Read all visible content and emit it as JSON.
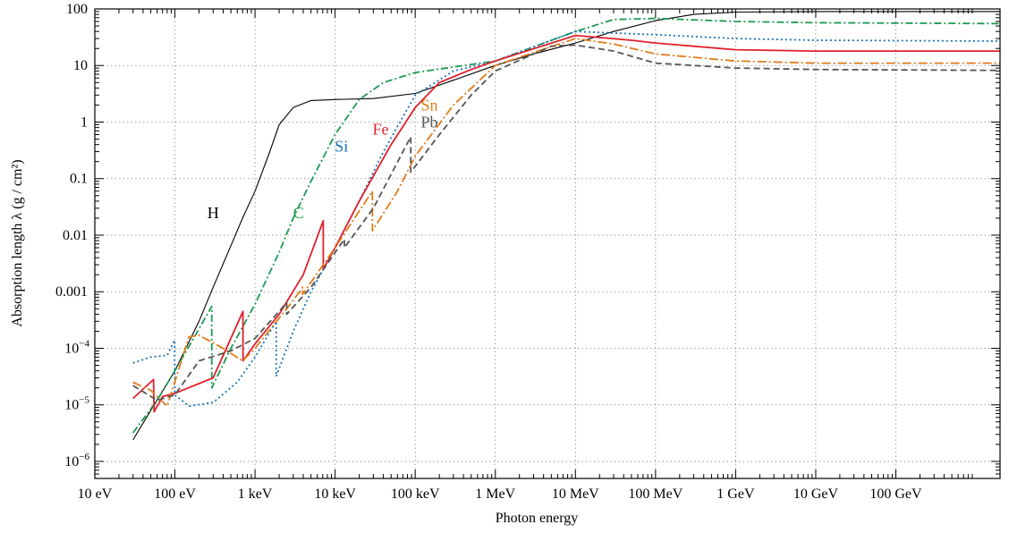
{
  "chart_data": {
    "type": "line",
    "title": "",
    "xlabel": "Photon energy",
    "ylabel": "Absorption length   λ  (g / cm²)",
    "x_scale": "log",
    "y_scale": "log",
    "xlim_eV": [
      10,
      2000000000000
    ],
    "ylim_g_per_cm2": [
      5e-07,
      100
    ],
    "grid": true,
    "legend": "none",
    "x_ticks": [
      {
        "value": 10,
        "label": "10 eV"
      },
      {
        "value": 100,
        "label": "100 eV"
      },
      {
        "value": 1000,
        "label": "1 keV"
      },
      {
        "value": 10000,
        "label": "10 keV"
      },
      {
        "value": 100000,
        "label": "100 keV"
      },
      {
        "value": 1000000,
        "label": "1 MeV"
      },
      {
        "value": 10000000,
        "label": "10 MeV"
      },
      {
        "value": 100000000,
        "label": "100 MeV"
      },
      {
        "value": 1000000000,
        "label": "1 GeV"
      },
      {
        "value": 10000000000,
        "label": "10 GeV"
      },
      {
        "value": 100000000000,
        "label": "100 GeV"
      }
    ],
    "y_ticks": [
      {
        "value": 1e-06,
        "label": "10",
        "sup": "−6"
      },
      {
        "value": 1e-05,
        "label": "10",
        "sup": "−5"
      },
      {
        "value": 0.0001,
        "label": "10",
        "sup": "−4"
      },
      {
        "value": 0.001,
        "label": "0.001",
        "sup": ""
      },
      {
        "value": 0.01,
        "label": "0.01",
        "sup": ""
      },
      {
        "value": 0.1,
        "label": "0.1",
        "sup": ""
      },
      {
        "value": 1,
        "label": "1",
        "sup": ""
      },
      {
        "value": 10,
        "label": "10",
        "sup": ""
      },
      {
        "value": 100,
        "label": "100",
        "sup": ""
      }
    ],
    "series": [
      {
        "name": "H",
        "color": "#000000",
        "dash": "",
        "label_at": [
          300,
          0.02
        ],
        "points": [
          [
            30,
            2.4e-06
          ],
          [
            50,
            8e-06
          ],
          [
            100,
            4e-05
          ],
          [
            200,
            0.0003
          ],
          [
            300,
            0.0012
          ],
          [
            500,
            0.0065
          ],
          [
            700,
            0.02
          ],
          [
            1000,
            0.06
          ],
          [
            1500,
            0.28
          ],
          [
            2000,
            0.9
          ],
          [
            3000,
            1.8
          ],
          [
            5000,
            2.4
          ],
          [
            10000,
            2.5
          ],
          [
            30000,
            2.6
          ],
          [
            100000,
            3.2
          ],
          [
            300000,
            5.5
          ],
          [
            1000000,
            10
          ],
          [
            3000000,
            16
          ],
          [
            10000000,
            25
          ],
          [
            30000000,
            40
          ],
          [
            100000000,
            62
          ],
          [
            300000000,
            80
          ],
          [
            1000000000,
            88
          ],
          [
            10000000000,
            90
          ],
          [
            2000000000000,
            90
          ]
        ]
      },
      {
        "name": "C",
        "color": "#1a9a50",
        "dash": "8 3 2 3",
        "label_at": [
          3500,
          0.02
        ],
        "points": [
          [
            30,
            3.2e-06
          ],
          [
            60,
            1.2e-05
          ],
          [
            100,
            4e-05
          ],
          [
            200,
            0.00022
          ],
          [
            288,
            0.00055
          ],
          [
            289,
            2e-05
          ],
          [
            500,
            0.0001
          ],
          [
            1000,
            0.0006
          ],
          [
            2000,
            0.005
          ],
          [
            3000,
            0.02
          ],
          [
            5000,
            0.09
          ],
          [
            10000,
            0.6
          ],
          [
            20000,
            2.5
          ],
          [
            40000,
            5
          ],
          [
            100000,
            7.5
          ],
          [
            1000000,
            12
          ],
          [
            10000000,
            40
          ],
          [
            30000000,
            65
          ],
          [
            100000000,
            68
          ],
          [
            1000000000,
            60
          ],
          [
            10000000000,
            57
          ],
          [
            2000000000000,
            55
          ]
        ]
      },
      {
        "name": "Si",
        "color": "#1874b8",
        "dash": "2 3",
        "label_at": [
          12000,
          0.3
        ],
        "points": [
          [
            30,
            5.5e-05
          ],
          [
            50,
            7e-05
          ],
          [
            80,
            7.5e-05
          ],
          [
            99,
            0.00014
          ],
          [
            100,
            1.5e-05
          ],
          [
            150,
            9.5e-06
          ],
          [
            300,
            1.1e-05
          ],
          [
            600,
            2.5e-05
          ],
          [
            1000,
            7e-05
          ],
          [
            1839,
            0.0003
          ],
          [
            1840,
            3.2e-05
          ],
          [
            3000,
            0.0002
          ],
          [
            5000,
            0.001
          ],
          [
            10000,
            0.006
          ],
          [
            20000,
            0.04
          ],
          [
            40000,
            0.3
          ],
          [
            100000,
            3
          ],
          [
            300000,
            8
          ],
          [
            1000000,
            12
          ],
          [
            10000000,
            40
          ],
          [
            100000000,
            35
          ],
          [
            1000000000,
            30
          ],
          [
            10000000000,
            28
          ],
          [
            2000000000000,
            27
          ]
        ]
      },
      {
        "name": "Fe",
        "color": "#e0202a",
        "dash": "",
        "label_at": [
          37000,
          0.6
        ],
        "points": [
          [
            30,
            1.3e-05
          ],
          [
            54,
            2.8e-05
          ],
          [
            55,
            7.5e-06
          ],
          [
            70,
            1.4e-05
          ],
          [
            100,
            1.6e-05
          ],
          [
            300,
            3e-05
          ],
          [
            707,
            0.00045
          ],
          [
            708,
            6e-05
          ],
          [
            1000,
            0.00012
          ],
          [
            2000,
            0.0004
          ],
          [
            4000,
            0.002
          ],
          [
            7111,
            0.018
          ],
          [
            7112,
            0.0025
          ],
          [
            10000,
            0.006
          ],
          [
            20000,
            0.04
          ],
          [
            50000,
            0.4
          ],
          [
            100000,
            1.8
          ],
          [
            200000,
            5
          ],
          [
            500000,
            8.5
          ],
          [
            1000000,
            12
          ],
          [
            10000000,
            34
          ],
          [
            50000000,
            28
          ],
          [
            100000000,
            25
          ],
          [
            1000000000,
            19
          ],
          [
            10000000000,
            18
          ],
          [
            2000000000000,
            18
          ]
        ]
      },
      {
        "name": "Sn",
        "color": "#e07b1a",
        "dash": "10 3 2 3",
        "label_at": [
          150000,
          1.6
        ],
        "points": [
          [
            30,
            2.5e-05
          ],
          [
            50,
            1.8e-05
          ],
          [
            80,
            9.5e-06
          ],
          [
            150,
            0.00016
          ],
          [
            200,
            0.00017
          ],
          [
            400,
            0.0001
          ],
          [
            700,
            6e-05
          ],
          [
            1000,
            0.0001
          ],
          [
            3000,
            0.0007
          ],
          [
            3928,
            0.0012
          ],
          [
            3929,
            0.0009
          ],
          [
            10000,
            0.006
          ],
          [
            29200,
            0.06
          ],
          [
            29201,
            0.012
          ],
          [
            60000,
            0.06
          ],
          [
            100000,
            0.25
          ],
          [
            300000,
            2
          ],
          [
            1000000,
            10
          ],
          [
            10000000,
            30
          ],
          [
            30000000,
            24
          ],
          [
            100000000,
            16
          ],
          [
            1000000000,
            12
          ],
          [
            10000000000,
            11
          ],
          [
            2000000000000,
            11
          ]
        ]
      },
      {
        "name": "Pb",
        "color": "#555555",
        "dash": "7 4",
        "label_at": [
          150000,
          0.8
        ],
        "points": [
          [
            30,
            2.2e-05
          ],
          [
            60,
            1.2e-05
          ],
          [
            100,
            1.5e-05
          ],
          [
            200,
            6e-05
          ],
          [
            500,
            9e-05
          ],
          [
            1000,
            0.00015
          ],
          [
            2000,
            0.00045
          ],
          [
            2484,
            0.00065
          ],
          [
            2485,
            0.0004
          ],
          [
            5000,
            0.0012
          ],
          [
            13035,
            0.0085
          ],
          [
            13036,
            0.006
          ],
          [
            30000,
            0.03
          ],
          [
            88004,
            0.55
          ],
          [
            88005,
            0.13
          ],
          [
            200000,
            0.6
          ],
          [
            500000,
            3
          ],
          [
            1000000,
            8
          ],
          [
            5000000,
            22
          ],
          [
            10000000,
            23
          ],
          [
            30000000,
            18
          ],
          [
            100000000,
            11
          ],
          [
            1000000000,
            9
          ],
          [
            10000000000,
            8.5
          ],
          [
            2000000000000,
            8.2
          ]
        ]
      }
    ]
  }
}
